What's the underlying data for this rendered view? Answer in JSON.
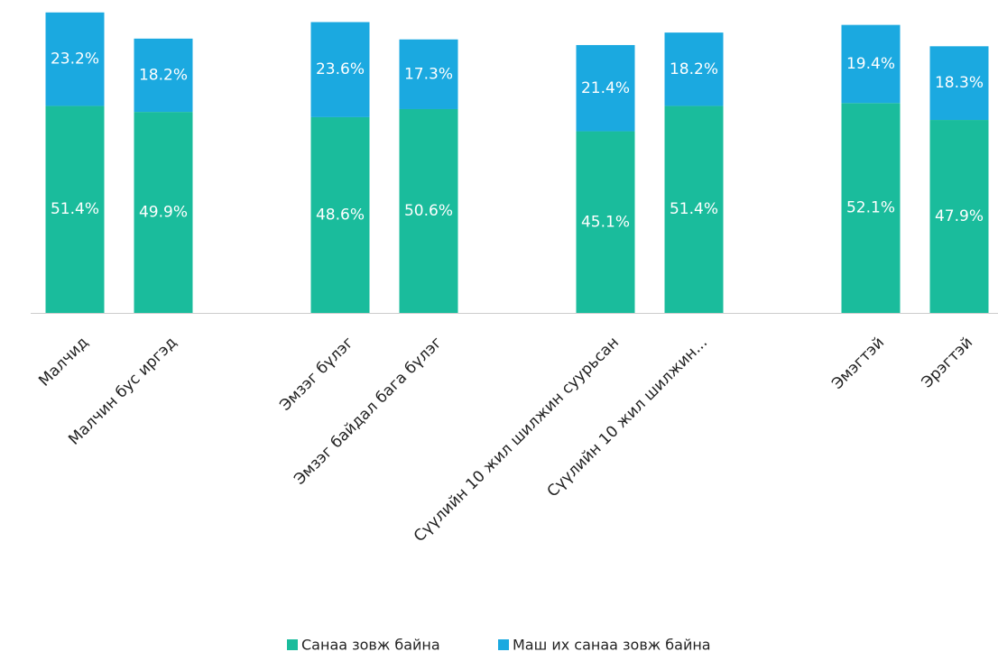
{
  "chart_data": {
    "type": "stacked-bar",
    "categories": [
      "Малчид",
      "Малчин бус иргэд",
      null,
      "Эмзэг бүлэг",
      "Эмзэг байдал бага бүлэг",
      null,
      "Сүүлийн 10 жил шилжин суурьсан",
      "Сүүлийн 10 жил шилжин...",
      null,
      "Эмэгтэй",
      "Эрэгтэй"
    ],
    "series": [
      {
        "name": "Санаа зовж байна",
        "color": "#1abc9c",
        "values": [
          51.4,
          49.9,
          null,
          48.6,
          50.6,
          null,
          45.1,
          51.4,
          null,
          52.1,
          47.9
        ],
        "value_labels": [
          "51.4%",
          "49.9%",
          null,
          "48.6%",
          "50.6%",
          null,
          "45.1%",
          "51.4%",
          null,
          "52.1%",
          "47.9%"
        ]
      },
      {
        "name": "Маш их санаа зовж байна",
        "color": "#1ba9e0",
        "values": [
          23.2,
          18.2,
          null,
          23.6,
          17.3,
          null,
          21.4,
          18.2,
          null,
          19.4,
          18.3
        ],
        "value_labels": [
          "23.2%",
          "18.2%",
          null,
          "23.6%",
          "17.3%",
          null,
          "21.4%",
          "18.2%",
          null,
          "19.4%",
          "18.3%"
        ]
      }
    ],
    "ylim": [
      0,
      75
    ]
  }
}
